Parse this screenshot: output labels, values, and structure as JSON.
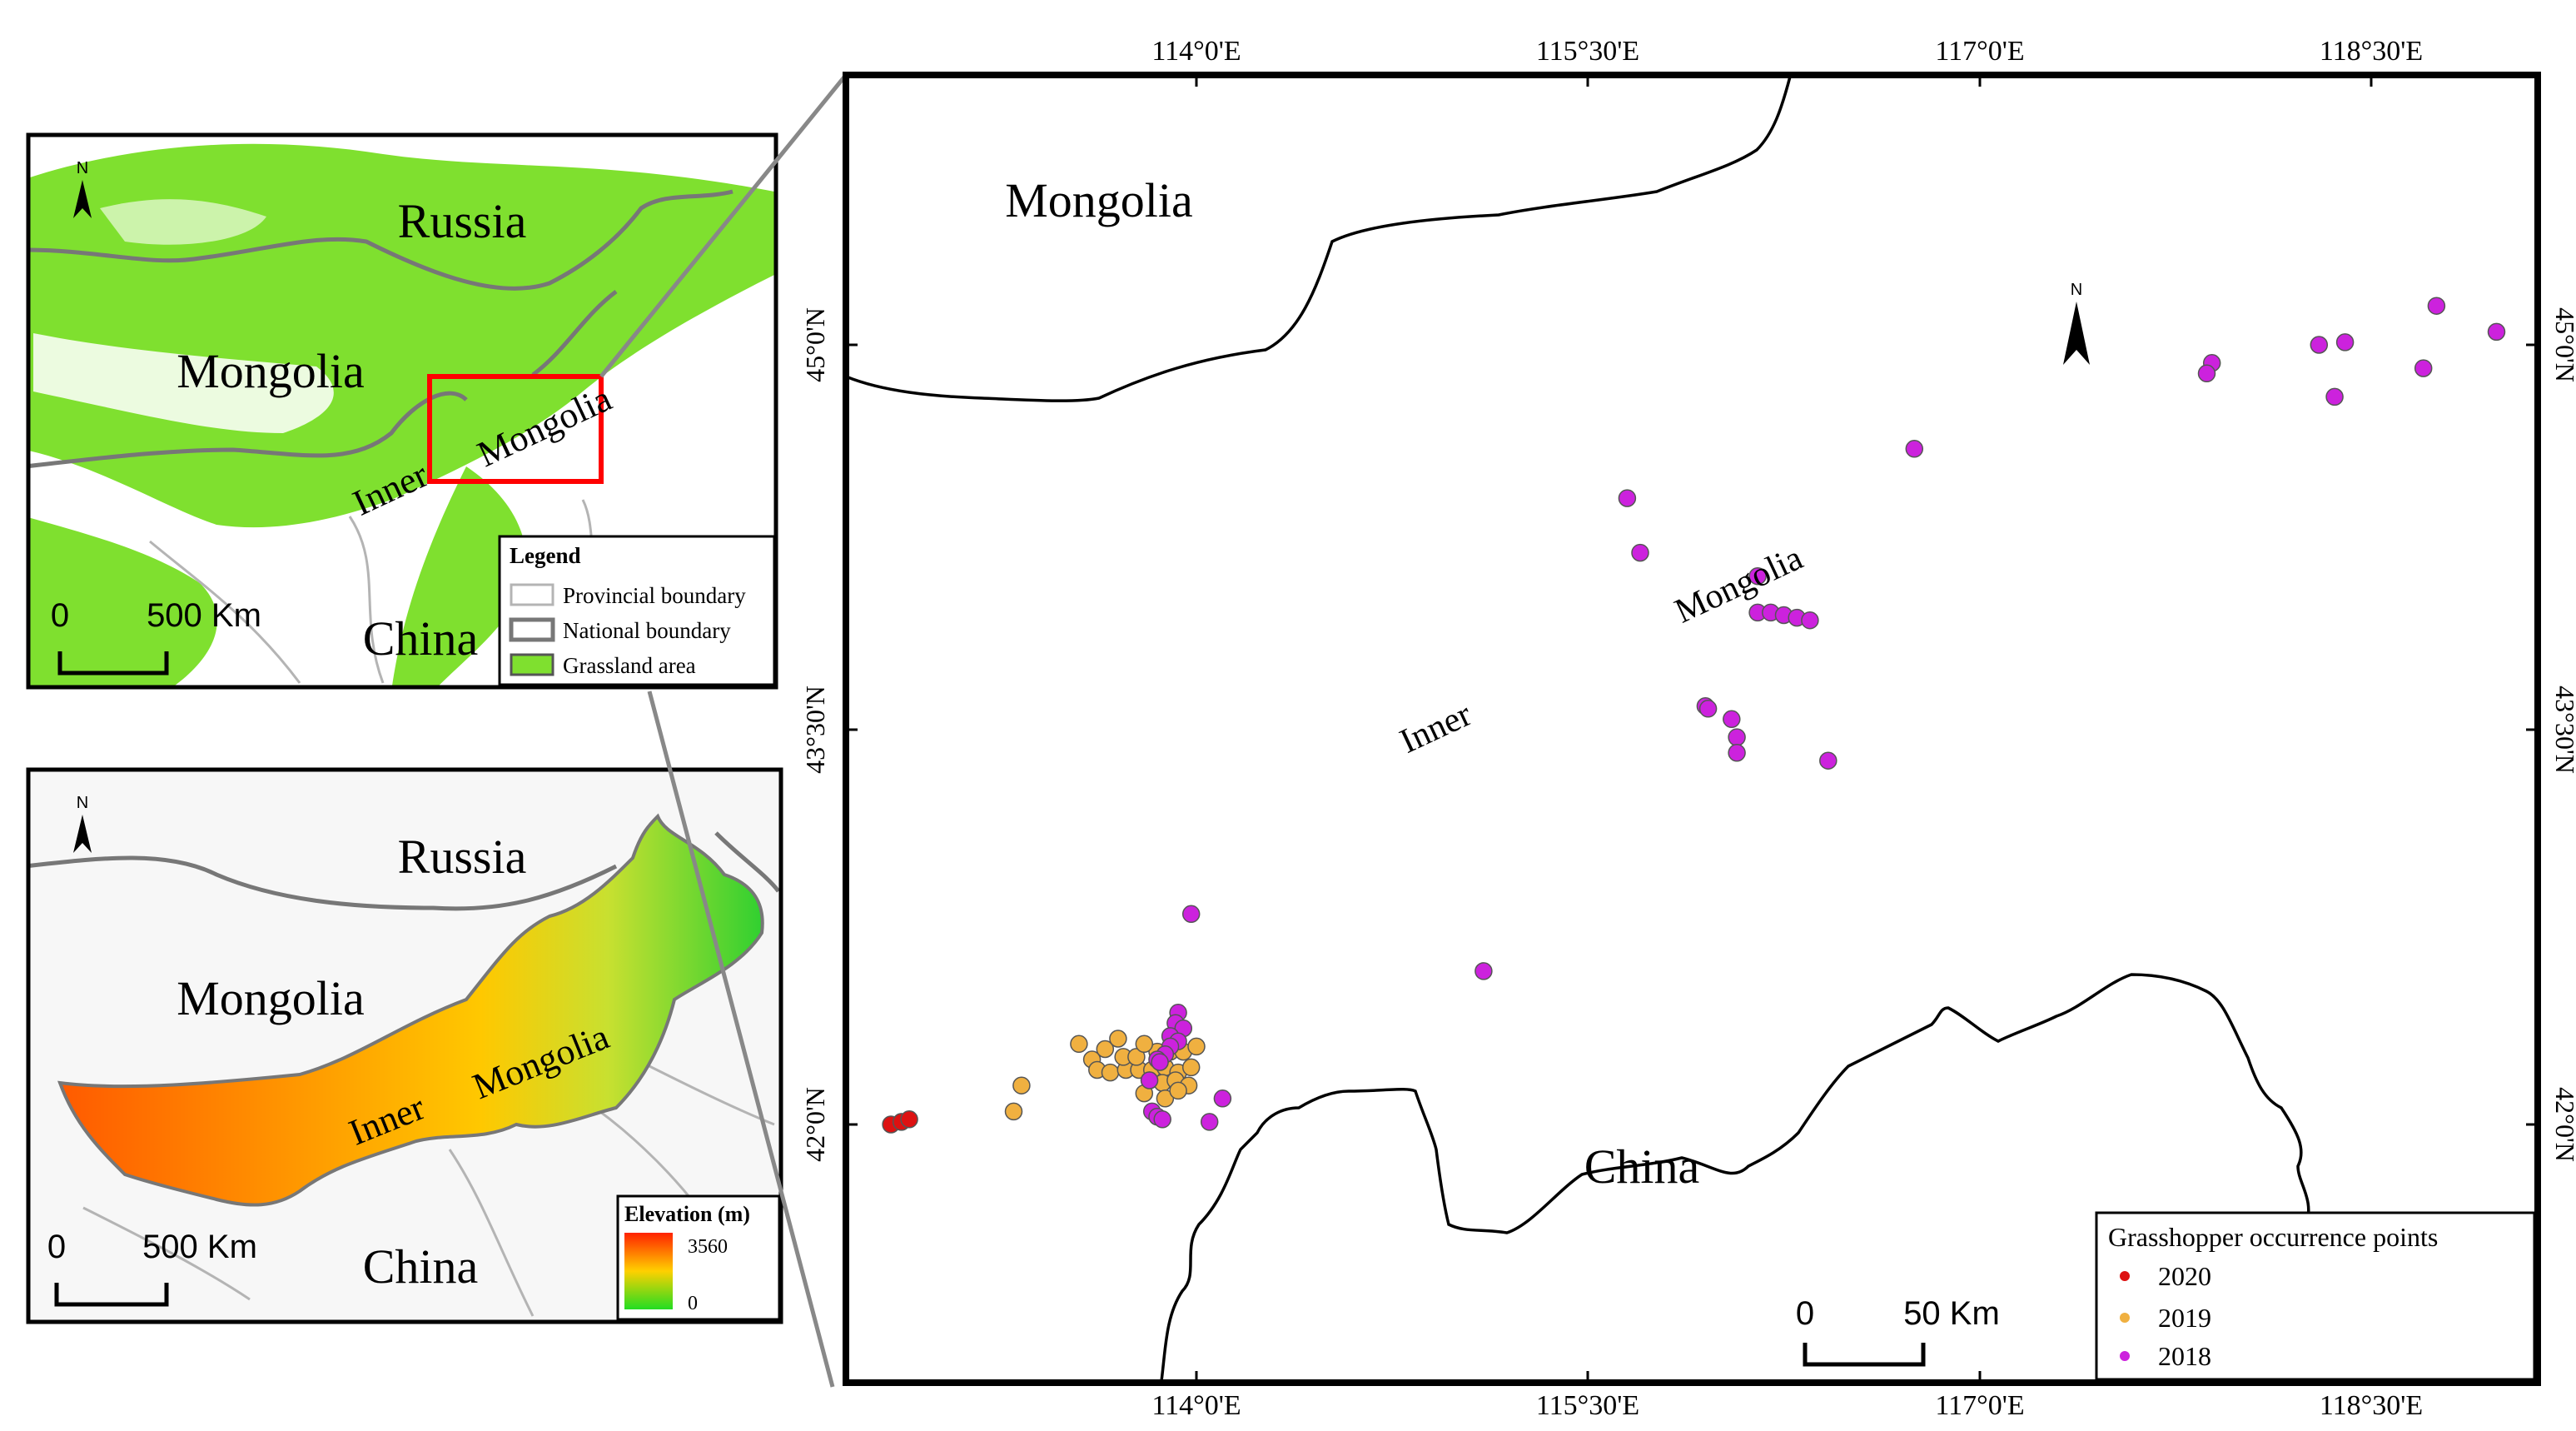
{
  "inset_top": {
    "north_label": "N",
    "countries": [
      "Russia",
      "Mongolia",
      "China"
    ],
    "region_words": [
      "Inner",
      "Mongolia"
    ],
    "scale": {
      "zero": "0",
      "value": "500 Km"
    },
    "legend": {
      "title": "Legend",
      "items": [
        "Provincial boundary",
        "National boundary",
        "Grassland area"
      ]
    },
    "colors": {
      "grassland": "#7fe02f",
      "study_box": "#ff0000",
      "national": "#777777",
      "provincial": "#b4b4b4"
    }
  },
  "inset_bottom": {
    "north_label": "N",
    "countries": [
      "Russia",
      "Mongolia",
      "China"
    ],
    "region_words": [
      "Inner",
      "Mongolia"
    ],
    "scale": {
      "zero": "0",
      "value": "500 Km"
    },
    "legend": {
      "title": "Elevation (m)",
      "max": "3560",
      "min": "0"
    },
    "colors": {
      "high": "#ff2200",
      "mid": "#ffd000",
      "low": "#22dd22"
    }
  },
  "main_map": {
    "north_label": "N",
    "countries": [
      "Mongolia",
      "China"
    ],
    "region_words": [
      "Inner",
      "Mongolia"
    ],
    "top_ticks": [
      "114°0'E",
      "115°30'E",
      "117°0'E",
      "118°30'E"
    ],
    "bottom_ticks": [
      "114°0'E",
      "115°30'E",
      "117°0'E",
      "118°30'E"
    ],
    "left_ticks": [
      "45°0'N",
      "43°30'N",
      "42°0'N"
    ],
    "right_ticks": [
      "45°0'N",
      "43°30'N",
      "42°0'N"
    ],
    "scale": {
      "zero": "0",
      "value": "50 Km"
    },
    "legend": {
      "title": "Grasshopper occurrence points",
      "items": [
        {
          "year": "2020",
          "color": "#dd1111"
        },
        {
          "year": "2019",
          "color": "#f0b040"
        },
        {
          "year": "2018",
          "color": "#cc22dd"
        }
      ]
    },
    "points_2018": [
      [
        116.75,
        44.6
      ],
      [
        115.65,
        44.41
      ],
      [
        115.7,
        44.2
      ],
      [
        116.15,
        44.11
      ],
      [
        116.15,
        43.97
      ],
      [
        116.2,
        43.97
      ],
      [
        116.25,
        43.96
      ],
      [
        116.3,
        43.95
      ],
      [
        116.35,
        43.94
      ],
      [
        115.95,
        43.61
      ],
      [
        115.96,
        43.6
      ],
      [
        116.05,
        43.56
      ],
      [
        116.07,
        43.49
      ],
      [
        116.07,
        43.43
      ],
      [
        116.42,
        43.4
      ],
      [
        115.1,
        42.59
      ],
      [
        113.98,
        42.81
      ],
      [
        113.93,
        42.43
      ],
      [
        113.92,
        42.39
      ],
      [
        113.95,
        42.37
      ],
      [
        113.9,
        42.34
      ],
      [
        113.93,
        42.32
      ],
      [
        113.9,
        42.3
      ],
      [
        113.88,
        42.27
      ],
      [
        113.85,
        42.25
      ],
      [
        113.86,
        42.24
      ],
      [
        113.82,
        42.17
      ],
      [
        113.83,
        42.05
      ],
      [
        113.85,
        42.03
      ],
      [
        113.87,
        42.02
      ],
      [
        114.05,
        42.01
      ],
      [
        114.1,
        42.1
      ],
      [
        118.75,
        45.15
      ],
      [
        118.98,
        45.05
      ],
      [
        118.7,
        44.91
      ],
      [
        118.3,
        45.0
      ],
      [
        118.4,
        45.01
      ],
      [
        117.89,
        44.93
      ],
      [
        117.87,
        44.89
      ],
      [
        118.36,
        44.8
      ]
    ],
    "points_2019": [
      [
        113.33,
        42.15
      ],
      [
        113.3,
        42.05
      ],
      [
        113.55,
        42.31
      ],
      [
        113.6,
        42.25
      ],
      [
        113.65,
        42.29
      ],
      [
        113.7,
        42.33
      ],
      [
        113.62,
        42.21
      ],
      [
        113.67,
        42.2
      ],
      [
        113.73,
        42.21
      ],
      [
        113.78,
        42.21
      ],
      [
        113.83,
        42.21
      ],
      [
        113.88,
        42.22
      ],
      [
        113.93,
        42.2
      ],
      [
        113.98,
        42.22
      ],
      [
        113.72,
        42.26
      ],
      [
        113.77,
        42.26
      ],
      [
        113.85,
        42.28
      ],
      [
        113.9,
        42.28
      ],
      [
        113.95,
        42.28
      ],
      [
        114.0,
        42.3
      ],
      [
        113.8,
        42.31
      ],
      [
        113.82,
        42.17
      ],
      [
        113.87,
        42.16
      ],
      [
        113.92,
        42.17
      ],
      [
        113.97,
        42.15
      ],
      [
        113.8,
        42.12
      ],
      [
        113.88,
        42.1
      ],
      [
        113.93,
        42.13
      ]
    ],
    "points_2020": [
      [
        112.83,
        42.0
      ],
      [
        112.87,
        42.01
      ],
      [
        112.9,
        42.02
      ]
    ]
  }
}
